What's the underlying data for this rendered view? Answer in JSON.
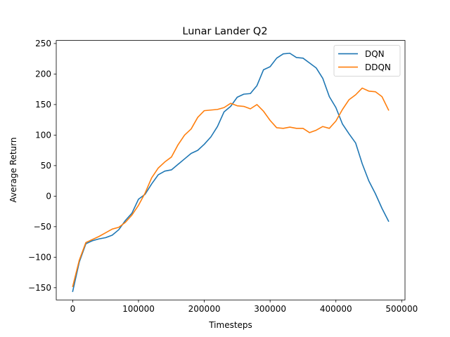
{
  "chart_data": {
    "type": "line",
    "title": "Lunar Lander Q2",
    "xlabel": "Timesteps",
    "ylabel": "Average Return",
    "xlim": [
      -25000,
      505000
    ],
    "ylim": [
      -170,
      255
    ],
    "xticks": [
      0,
      100000,
      200000,
      300000,
      400000,
      500000
    ],
    "xtick_labels": [
      "0",
      "100000",
      "200000",
      "300000",
      "400000",
      "500000"
    ],
    "yticks": [
      -150,
      -100,
      -50,
      0,
      50,
      100,
      150,
      200,
      250
    ],
    "ytick_labels": [
      "−150",
      "−100",
      "−50",
      "0",
      "50",
      "100",
      "150",
      "200",
      "250"
    ],
    "grid": false,
    "legend_position": "top-right",
    "x": [
      0,
      10000,
      20000,
      30000,
      40000,
      50000,
      60000,
      70000,
      80000,
      90000,
      100000,
      110000,
      120000,
      130000,
      140000,
      150000,
      160000,
      170000,
      180000,
      190000,
      200000,
      210000,
      220000,
      230000,
      240000,
      250000,
      260000,
      270000,
      280000,
      290000,
      300000,
      310000,
      320000,
      330000,
      340000,
      350000,
      360000,
      370000,
      380000,
      390000,
      400000,
      410000,
      420000,
      430000,
      440000,
      450000,
      460000,
      470000,
      480000
    ],
    "series": [
      {
        "name": "DQN",
        "color": "#1f77b4",
        "values": [
          -156,
          -108,
          -78,
          -73,
          -70,
          -68,
          -64,
          -55,
          -40,
          -28,
          -5,
          3,
          20,
          35,
          41,
          43,
          52,
          61,
          70,
          75,
          85,
          97,
          114,
          138,
          147,
          162,
          167,
          168,
          181,
          207,
          212,
          226,
          233,
          234,
          227,
          226,
          218,
          210,
          193,
          163,
          145,
          118,
          102,
          87,
          53,
          25,
          4,
          -20,
          -41
        ]
      },
      {
        "name": "DDQN",
        "color": "#ff7f0e",
        "values": [
          -148,
          -105,
          -76,
          -71,
          -66,
          -60,
          -54,
          -51,
          -43,
          -31,
          -15,
          5,
          30,
          46,
          56,
          64,
          84,
          100,
          110,
          129,
          140,
          141,
          142,
          145,
          152,
          148,
          147,
          143,
          150,
          139,
          124,
          112,
          111,
          113,
          111,
          111,
          104,
          108,
          114,
          111,
          123,
          142,
          158,
          166,
          177,
          172,
          171,
          163,
          141
        ]
      }
    ]
  }
}
